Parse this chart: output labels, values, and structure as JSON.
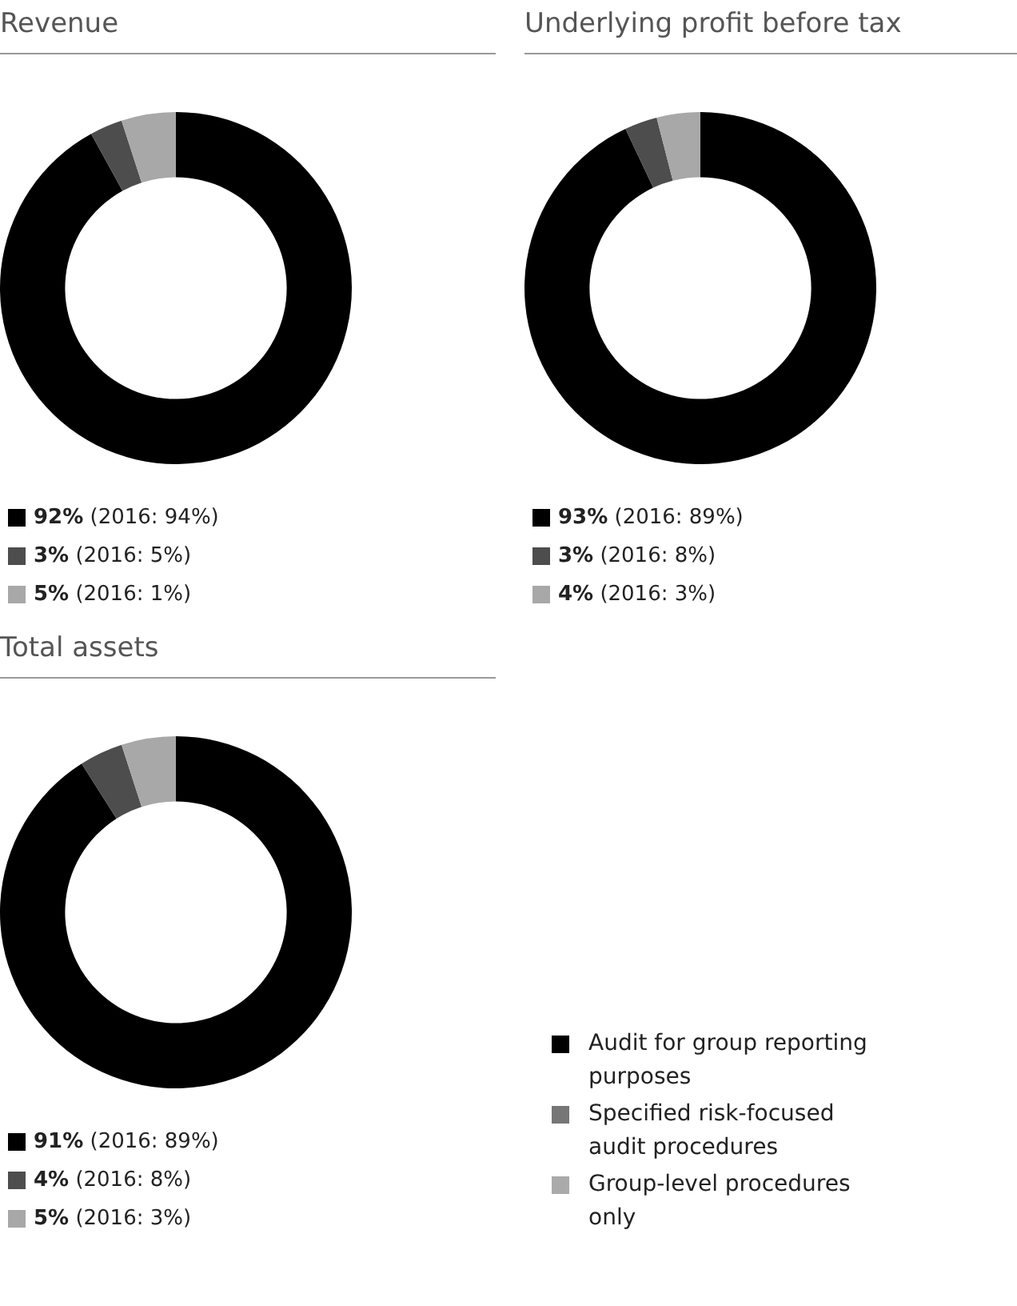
{
  "chart_data": [
    {
      "type": "donut",
      "title": "Revenue",
      "categories": [
        "92% (2016: 94%)",
        "3% (2016: 5%)",
        "5% (2016: 1%)"
      ],
      "values": [
        92,
        3,
        5
      ],
      "colors": [
        "#000000",
        "#4d4d4d",
        "#a8a8a8"
      ],
      "legend": "bottom left"
    },
    {
      "type": "donut",
      "title": "Underlying profit before tax",
      "categories": [
        "93% (2016: 89%)",
        "3% (2016: 8%)",
        "4% (2016: 3%)"
      ],
      "values": [
        93,
        3,
        4
      ],
      "colors": [
        "#000000",
        "#4d4d4d",
        "#a8a8a8"
      ],
      "legend": "bottom left"
    },
    {
      "type": "donut",
      "title": "Total assets",
      "categories": [
        "91% (2016: 89%)",
        "4% (2016: 8%)",
        "5% (2016: 3%)"
      ],
      "values": [
        91,
        4,
        5
      ],
      "colors": [
        "#000000",
        "#4d4d4d",
        "#a8a8a8"
      ],
      "legend": "bottom left"
    },
    {
      "type": "other",
      "categories": [
        "Audit for group reporting purposes",
        "Specified risk-focused audit procedures",
        "Group-level procedures only"
      ],
      "colors": [
        "#000000",
        "#767676",
        "#aaaaaa"
      ]
    }
  ]
}
